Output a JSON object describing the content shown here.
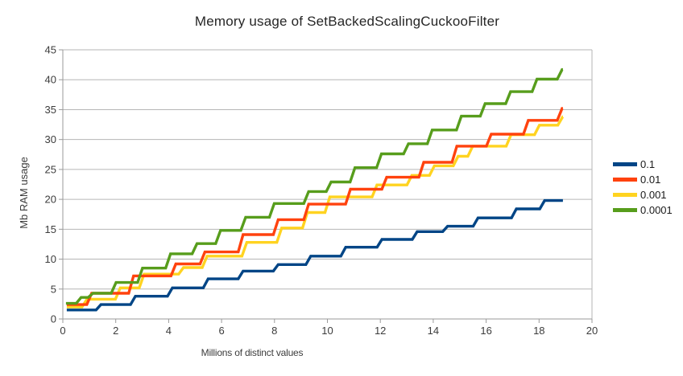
{
  "title": "Memory usage of SetBackedScalingCuckooFilter",
  "chart_data": {
    "type": "line",
    "subtype": "step",
    "title": "Memory usage of SetBackedScalingCuckooFilter",
    "xlabel": "Millions of distinct values",
    "ylabel": "Mb RAM usage",
    "xlim": [
      0,
      20
    ],
    "ylim": [
      0,
      45
    ],
    "x_ticks": [
      0,
      2,
      4,
      6,
      8,
      10,
      12,
      14,
      16,
      18,
      20
    ],
    "y_ticks": [
      0,
      5,
      10,
      15,
      20,
      25,
      30,
      35,
      40,
      45
    ],
    "grid": "horizontal",
    "legend_position": "right",
    "x_start": 0.15,
    "x_end": 18.9,
    "colors": {
      "grid": "#b6b6b6",
      "axis": "#9a9a9a",
      "text": "#3c3c3c"
    },
    "series": [
      {
        "name": "0.1",
        "color": "#004586",
        "steps": [
          [
            0.15,
            1.5
          ],
          [
            1.35,
            2.4
          ],
          [
            2.65,
            3.8
          ],
          [
            4.05,
            5.2
          ],
          [
            5.4,
            6.7
          ],
          [
            6.72,
            8.0
          ],
          [
            8.05,
            9.1
          ],
          [
            9.28,
            10.5
          ],
          [
            10.6,
            12.0
          ],
          [
            11.97,
            13.3
          ],
          [
            13.3,
            14.6
          ],
          [
            14.45,
            15.5
          ],
          [
            15.6,
            16.9
          ],
          [
            17.05,
            18.4
          ],
          [
            18.12,
            19.8
          ]
        ]
      },
      {
        "name": "0.01",
        "color": "#ff420e",
        "steps": [
          [
            0.15,
            2.4
          ],
          [
            1.0,
            4.3
          ],
          [
            2.58,
            7.2
          ],
          [
            4.18,
            9.2
          ],
          [
            5.28,
            11.2
          ],
          [
            6.72,
            14.1
          ],
          [
            8.05,
            16.6
          ],
          [
            9.2,
            19.2
          ],
          [
            10.78,
            21.7
          ],
          [
            12.15,
            23.7
          ],
          [
            13.55,
            26.2
          ],
          [
            14.8,
            28.9
          ],
          [
            16.1,
            30.9
          ],
          [
            17.5,
            33.2
          ],
          [
            18.78,
            35.2
          ]
        ]
      },
      {
        "name": "0.001",
        "color": "#ffd320",
        "steps": [
          [
            0.15,
            2.0
          ],
          [
            0.82,
            3.3
          ],
          [
            2.08,
            5.2
          ],
          [
            2.98,
            7.5
          ],
          [
            4.47,
            8.6
          ],
          [
            5.36,
            10.5
          ],
          [
            6.86,
            12.8
          ],
          [
            8.18,
            15.2
          ],
          [
            9.15,
            17.8
          ],
          [
            10.0,
            20.4
          ],
          [
            11.78,
            22.4
          ],
          [
            13.1,
            24.0
          ],
          [
            13.95,
            25.6
          ],
          [
            14.85,
            27.2
          ],
          [
            15.4,
            28.9
          ],
          [
            16.85,
            30.8
          ],
          [
            17.92,
            32.4
          ],
          [
            18.8,
            33.8
          ]
        ]
      },
      {
        "name": "0.0001",
        "color": "#579d1c",
        "steps": [
          [
            0.12,
            2.6
          ],
          [
            0.6,
            3.6
          ],
          [
            1.05,
            4.3
          ],
          [
            1.92,
            6.1
          ],
          [
            2.92,
            8.5
          ],
          [
            3.98,
            10.9
          ],
          [
            4.98,
            12.6
          ],
          [
            5.87,
            14.8
          ],
          [
            6.82,
            17.0
          ],
          [
            7.9,
            19.3
          ],
          [
            9.2,
            21.3
          ],
          [
            10.05,
            22.9
          ],
          [
            10.95,
            25.3
          ],
          [
            11.95,
            27.6
          ],
          [
            12.97,
            29.3
          ],
          [
            13.87,
            31.6
          ],
          [
            14.97,
            33.9
          ],
          [
            15.87,
            36.0
          ],
          [
            16.83,
            38.0
          ],
          [
            17.83,
            40.1
          ],
          [
            18.78,
            41.7
          ]
        ]
      }
    ],
    "draw_order": [
      0,
      2,
      1,
      3
    ]
  },
  "legend": {
    "items": [
      {
        "label": "0.1"
      },
      {
        "label": "0.01"
      },
      {
        "label": "0.001"
      },
      {
        "label": "0.0001"
      }
    ]
  }
}
